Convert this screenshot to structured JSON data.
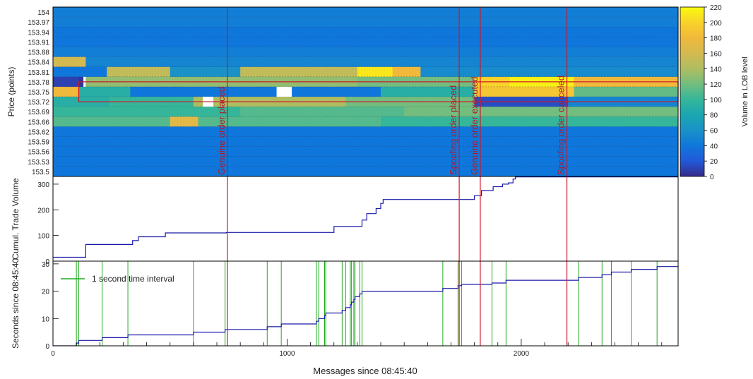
{
  "chart_data": {
    "type": "heatmap",
    "xlabel": "Messages since 08:45:40",
    "x_range": [
      0,
      2670
    ],
    "x_major_ticks": [
      0,
      1000,
      2000
    ],
    "events": [
      {
        "x": 745,
        "label": "Genuine order placed"
      },
      {
        "x": 1735,
        "label": "Spoofing order placed"
      },
      {
        "x": 1825,
        "label": "Genuine order executed"
      },
      {
        "x": 2195,
        "label": "Spoofing order canceled"
      }
    ],
    "panels": [
      {
        "name": "lob-heatmap",
        "type": "heatmap",
        "ylabel": "Price (points)",
        "price_levels": [
          "154",
          "153.97",
          "153.94",
          "153.91",
          "153.88",
          "153.84",
          "153.81",
          "153.78",
          "153.75",
          "153.72",
          "153.69",
          "153.66",
          "153.62",
          "153.59",
          "153.56",
          "153.53",
          "153.5"
        ],
        "colorbar": {
          "label": "Volume in LOB level",
          "range": [
            0,
            220
          ],
          "ticks": [
            "0",
            "20",
            "40",
            "60",
            "80",
            "100",
            "120",
            "140",
            "160",
            "180",
            "200",
            "220"
          ],
          "colors": [
            "#352a87",
            "#2259d9",
            "#0f77db",
            "#1a92c8",
            "#1aa6b0",
            "#35b69a",
            "#73bd7f",
            "#afbd61",
            "#d4b950",
            "#f0b93b",
            "#f9d22a",
            "#f9fb0e"
          ]
        },
        "level_segments": [
          {
            "price": "154",
            "segments": [
              [
                0,
                2670,
                45
              ]
            ]
          },
          {
            "price": "153.97",
            "segments": [
              [
                0,
                2670,
                45
              ]
            ]
          },
          {
            "price": "153.94",
            "segments": [
              [
                0,
                2670,
                40
              ]
            ]
          },
          {
            "price": "153.91",
            "segments": [
              [
                0,
                2670,
                40
              ]
            ]
          },
          {
            "price": "153.88",
            "segments": [
              [
                0,
                2670,
                45
              ]
            ]
          },
          {
            "price": "153.84",
            "segments": [
              [
                0,
                140,
                160
              ],
              [
                140,
                2670,
                50
              ]
            ]
          },
          {
            "price": "153.81",
            "segments": [
              [
                0,
                230,
                40
              ],
              [
                230,
                500,
                150
              ],
              [
                500,
                800,
                60
              ],
              [
                800,
                1300,
                150
              ],
              [
                1300,
                1450,
                210
              ],
              [
                1450,
                1570,
                180
              ],
              [
                1570,
                2670,
                55
              ]
            ]
          },
          {
            "price": "153.78",
            "segments": [
              [
                0,
                110,
                10
              ],
              [
                110,
                140,
                5
              ],
              [
                140,
                1300,
                130
              ],
              [
                1300,
                1800,
                120
              ],
              [
                1800,
                1950,
                200
              ],
              [
                1950,
                2225,
                215
              ],
              [
                2225,
                2670,
                180
              ]
            ]
          },
          {
            "price": "153.75",
            "segments": [
              [
                0,
                110,
                180
              ],
              [
                110,
                330,
                90
              ],
              [
                330,
                1400,
                40
              ],
              [
                1400,
                1800,
                90
              ],
              [
                1800,
                2225,
                190
              ],
              [
                2225,
                2670,
                115
              ]
            ]
          },
          {
            "price": "153.72",
            "segments": [
              [
                0,
                240,
                90
              ],
              [
                240,
                600,
                100
              ],
              [
                600,
                1250,
                140
              ],
              [
                1250,
                1800,
                120
              ],
              [
                1800,
                2200,
                15
              ],
              [
                2200,
                2670,
                50
              ]
            ]
          },
          {
            "price": "153.69",
            "segments": [
              [
                0,
                800,
                100
              ],
              [
                800,
                1500,
                110
              ],
              [
                1500,
                2670,
                120
              ]
            ]
          },
          {
            "price": "153.66",
            "segments": [
              [
                0,
                500,
                110
              ],
              [
                500,
                620,
                170
              ],
              [
                620,
                1400,
                110
              ],
              [
                1400,
                2670,
                100
              ]
            ]
          },
          {
            "price": "153.62",
            "segments": [
              [
                0,
                2670,
                40
              ]
            ]
          },
          {
            "price": "153.59",
            "segments": [
              [
                0,
                2670,
                40
              ]
            ]
          },
          {
            "price": "153.56",
            "segments": [
              [
                0,
                2670,
                40
              ]
            ]
          },
          {
            "price": "153.53",
            "segments": [
              [
                0,
                2670,
                40
              ]
            ]
          },
          {
            "price": "153.5",
            "segments": [
              [
                0,
                2670,
                40
              ]
            ]
          }
        ],
        "white_gaps": [
          {
            "price": "153.75",
            "x": [
              955,
              1020
            ]
          },
          {
            "price": "153.72",
            "x": [
              640,
              685
            ]
          },
          {
            "price": "153.78",
            "x": [
              130,
              140
            ]
          }
        ],
        "spoof_order_band": {
          "from_price": "153.78",
          "to_price": "153.72",
          "x": [
            110,
            2670
          ]
        }
      },
      {
        "name": "cumulative-trade-volume",
        "type": "line",
        "ylabel": "Cumul. Trade Volume",
        "ylim": [
          0,
          330
        ],
        "y_ticks": [
          "0",
          "100",
          "200",
          "300"
        ],
        "x": [
          0,
          140,
          140,
          340,
          340,
          365,
          365,
          480,
          480,
          740,
          740,
          1200,
          1200,
          1320,
          1320,
          1340,
          1340,
          1380,
          1380,
          1400,
          1400,
          1410,
          1410,
          1800,
          1800,
          1830,
          1830,
          1880,
          1880,
          1920,
          1920,
          1945,
          1945,
          1965,
          1965,
          1975,
          1975,
          2670
        ],
        "y": [
          15,
          15,
          65,
          65,
          80,
          80,
          95,
          95,
          110,
          110,
          112,
          112,
          135,
          135,
          160,
          160,
          185,
          185,
          205,
          205,
          225,
          225,
          240,
          240,
          255,
          255,
          275,
          275,
          290,
          290,
          300,
          300,
          305,
          305,
          320,
          320,
          328,
          328
        ]
      },
      {
        "name": "seconds-since",
        "type": "line",
        "ylabel": "Seconds since 08:45:40",
        "ylim": [
          0,
          31
        ],
        "y_ticks": [
          "0",
          "10",
          "20",
          "30"
        ],
        "legend": "1 second time interval",
        "legend_position": "top-left",
        "second_interval_lines": [
          100,
          110,
          210,
          320,
          600,
          735,
          915,
          975,
          1125,
          1135,
          1160,
          1165,
          1235,
          1250,
          1270,
          1275,
          1285,
          1290,
          1310,
          1320,
          1665,
          1730,
          1745,
          1875,
          1935,
          2245,
          2345,
          2385,
          2470,
          2580
        ],
        "x": [
          0,
          100,
          110,
          210,
          320,
          600,
          735,
          915,
          975,
          1125,
          1135,
          1160,
          1165,
          1235,
          1250,
          1270,
          1275,
          1285,
          1290,
          1310,
          1320,
          1665,
          1730,
          1745,
          1875,
          1935,
          2245,
          2345,
          2385,
          2470,
          2580,
          2670
        ],
        "y": [
          0,
          1,
          2,
          3,
          4,
          5,
          6,
          7,
          8,
          9,
          10,
          11,
          12,
          13,
          14,
          15,
          16,
          17,
          18,
          19,
          20,
          21,
          22,
          22.5,
          23,
          24,
          25,
          26,
          27,
          28,
          29,
          29.5
        ]
      }
    ]
  }
}
